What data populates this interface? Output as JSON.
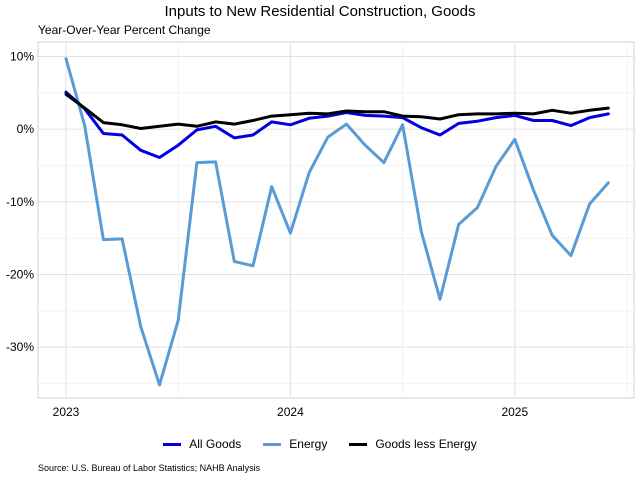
{
  "chart_data": {
    "type": "line",
    "title": "Inputs to New Residential Construction, Goods",
    "ylabel": "Year-Over-Year Percent Change",
    "source": "Source: U.S. Bureau of Labor Statistics; NAHB Analysis",
    "x": [
      "2023-01",
      "2023-02",
      "2023-03",
      "2023-04",
      "2023-05",
      "2023-06",
      "2023-07",
      "2023-08",
      "2023-09",
      "2023-10",
      "2023-11",
      "2023-12",
      "2024-01",
      "2024-02",
      "2024-03",
      "2024-04",
      "2024-05",
      "2024-06",
      "2024-07",
      "2024-08",
      "2024-09",
      "2024-10",
      "2024-11",
      "2024-12",
      "2025-01",
      "2025-02",
      "2025-03",
      "2025-04",
      "2025-05",
      "2025-06"
    ],
    "x_ticks": [
      "2023",
      "2024",
      "2025"
    ],
    "y_ticks": [
      "10%",
      "0%",
      "-10%",
      "-20%",
      "-30%"
    ],
    "y_tick_values": [
      10,
      0,
      -10,
      -20,
      -30
    ],
    "ylim": [
      -37,
      12
    ],
    "grid": true,
    "legend_position": "bottom",
    "series": [
      {
        "name": "All Goods",
        "color": "#0000e0",
        "values": [
          5.1,
          2.8,
          -0.6,
          -0.8,
          -2.9,
          -3.9,
          -2.2,
          -0.1,
          0.4,
          -1.2,
          -0.8,
          1.0,
          0.6,
          1.5,
          1.8,
          2.3,
          1.9,
          1.8,
          1.6,
          0.2,
          -0.8,
          0.8,
          1.1,
          1.6,
          1.9,
          1.2,
          1.2,
          0.5,
          1.6,
          2.1
        ]
      },
      {
        "name": "Energy",
        "color": "#5b9bd5",
        "values": [
          9.7,
          0.5,
          -15.2,
          -15.1,
          -27.2,
          -35.2,
          -26.3,
          -4.6,
          -4.5,
          -18.2,
          -18.8,
          -7.9,
          -14.3,
          -6.0,
          -1.1,
          0.7,
          -2.2,
          -4.6,
          0.6,
          -14.1,
          -23.4,
          -13.1,
          -10.8,
          -5.1,
          -1.4,
          -8.4,
          -14.6,
          -17.4,
          -10.3,
          -7.4
        ]
      },
      {
        "name": "Goods less Energy",
        "color": "#000000",
        "values": [
          4.8,
          2.9,
          0.9,
          0.6,
          0.1,
          0.4,
          0.7,
          0.4,
          1.0,
          0.7,
          1.2,
          1.8,
          2.0,
          2.2,
          2.1,
          2.5,
          2.4,
          2.4,
          1.8,
          1.7,
          1.4,
          2.0,
          2.1,
          2.1,
          2.2,
          2.1,
          2.6,
          2.2,
          2.6,
          2.9
        ]
      }
    ]
  }
}
